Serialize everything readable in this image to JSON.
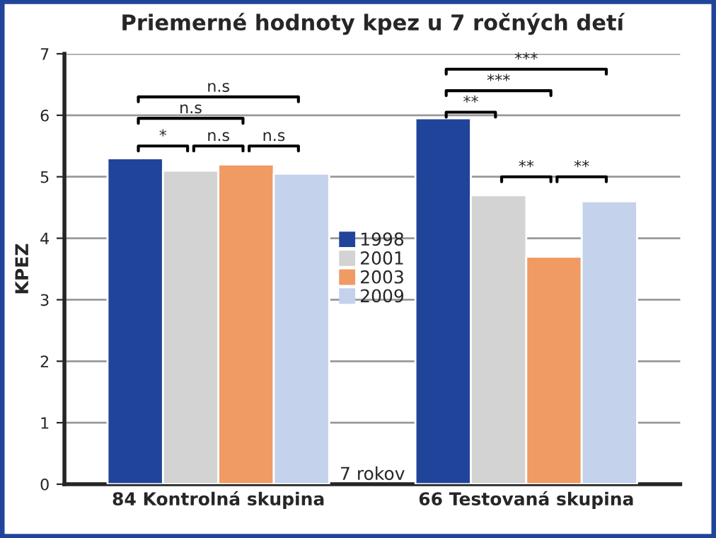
{
  "chart_data": {
    "type": "bar",
    "title": "Priemerné hodnoty kpez u 7 ročných detí",
    "ylabel": "KPEZ",
    "categories": [
      "84 Kontrolná skupina",
      "66 Testovaná skupina"
    ],
    "series": [
      {
        "name": "1998",
        "color": "#21449b",
        "values": [
          5.3,
          5.95
        ]
      },
      {
        "name": "2001",
        "color": "#d3d3d3",
        "values": [
          5.1,
          4.7
        ]
      },
      {
        "name": "2003",
        "color": "#f09a64",
        "values": [
          5.2,
          3.7
        ]
      },
      {
        "name": "2009",
        "color": "#c5d2ec",
        "values": [
          5.05,
          4.6
        ]
      }
    ],
    "ylim": [
      0,
      7
    ],
    "yticks": [
      0,
      1,
      2,
      3,
      4,
      5,
      6,
      7
    ],
    "grid": "y",
    "legend": "center",
    "annotations": [
      "n.s",
      "n.s",
      "*",
      "n.s",
      "n.s",
      "***",
      "***",
      "**",
      "**",
      "**",
      "7 rokov"
    ]
  }
}
